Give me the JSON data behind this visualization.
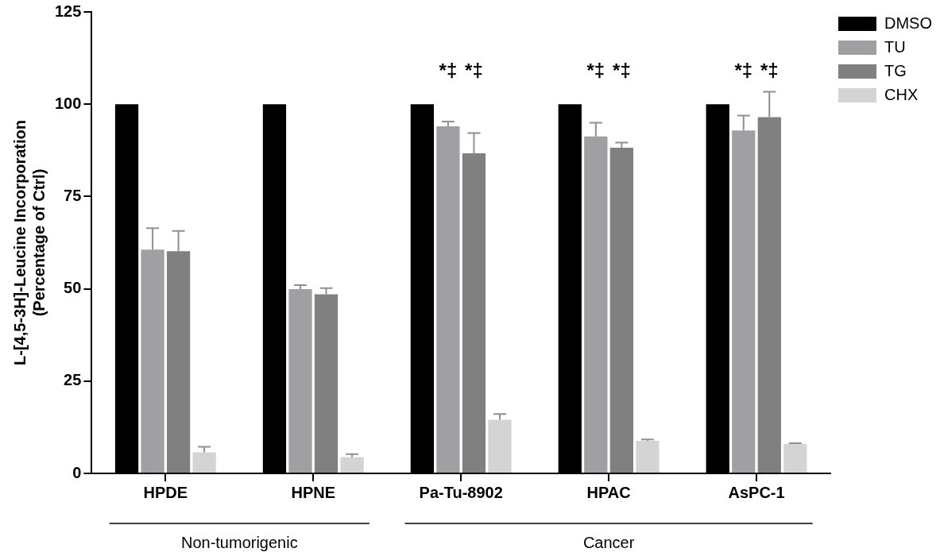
{
  "chart_data": {
    "type": "bar",
    "ylabel": "L-[4,5-3H]-Leucine Incorporation\n(Percentage of Ctrl)",
    "categories": [
      "HPDE",
      "HPNE",
      "Pa-Tu-8902",
      "HPAC",
      "AsPC-1"
    ],
    "series": [
      {
        "name": "DMSO",
        "color": "#000000",
        "values": [
          100,
          100,
          100,
          100,
          100
        ]
      },
      {
        "name": "TU",
        "color": "#a0a0a4",
        "values": [
          60.6,
          49.9,
          94.0,
          91.3,
          92.9
        ],
        "errors": [
          5.8,
          1.1,
          1.3,
          3.7,
          4.0
        ]
      },
      {
        "name": "TG",
        "color": "#808080",
        "values": [
          60.2,
          48.5,
          86.7,
          88.2,
          96.5
        ],
        "errors": [
          5.5,
          1.7,
          5.5,
          1.4,
          6.9
        ]
      },
      {
        "name": "CHX",
        "color": "#d4d4d4",
        "values": [
          5.7,
          4.4,
          14.5,
          8.8,
          8.0
        ],
        "errors": [
          1.5,
          0.8,
          1.6,
          0.4,
          0.2
        ]
      }
    ],
    "ylim": [
      0,
      125
    ],
    "yticks": [
      0,
      25,
      50,
      75,
      100,
      125
    ],
    "grid": false,
    "legend": "top right",
    "annotations": [
      "*‡",
      "*‡",
      "*‡",
      "*‡",
      "*‡",
      "*‡",
      "Non-tumorigenic",
      "Cancer"
    ]
  }
}
